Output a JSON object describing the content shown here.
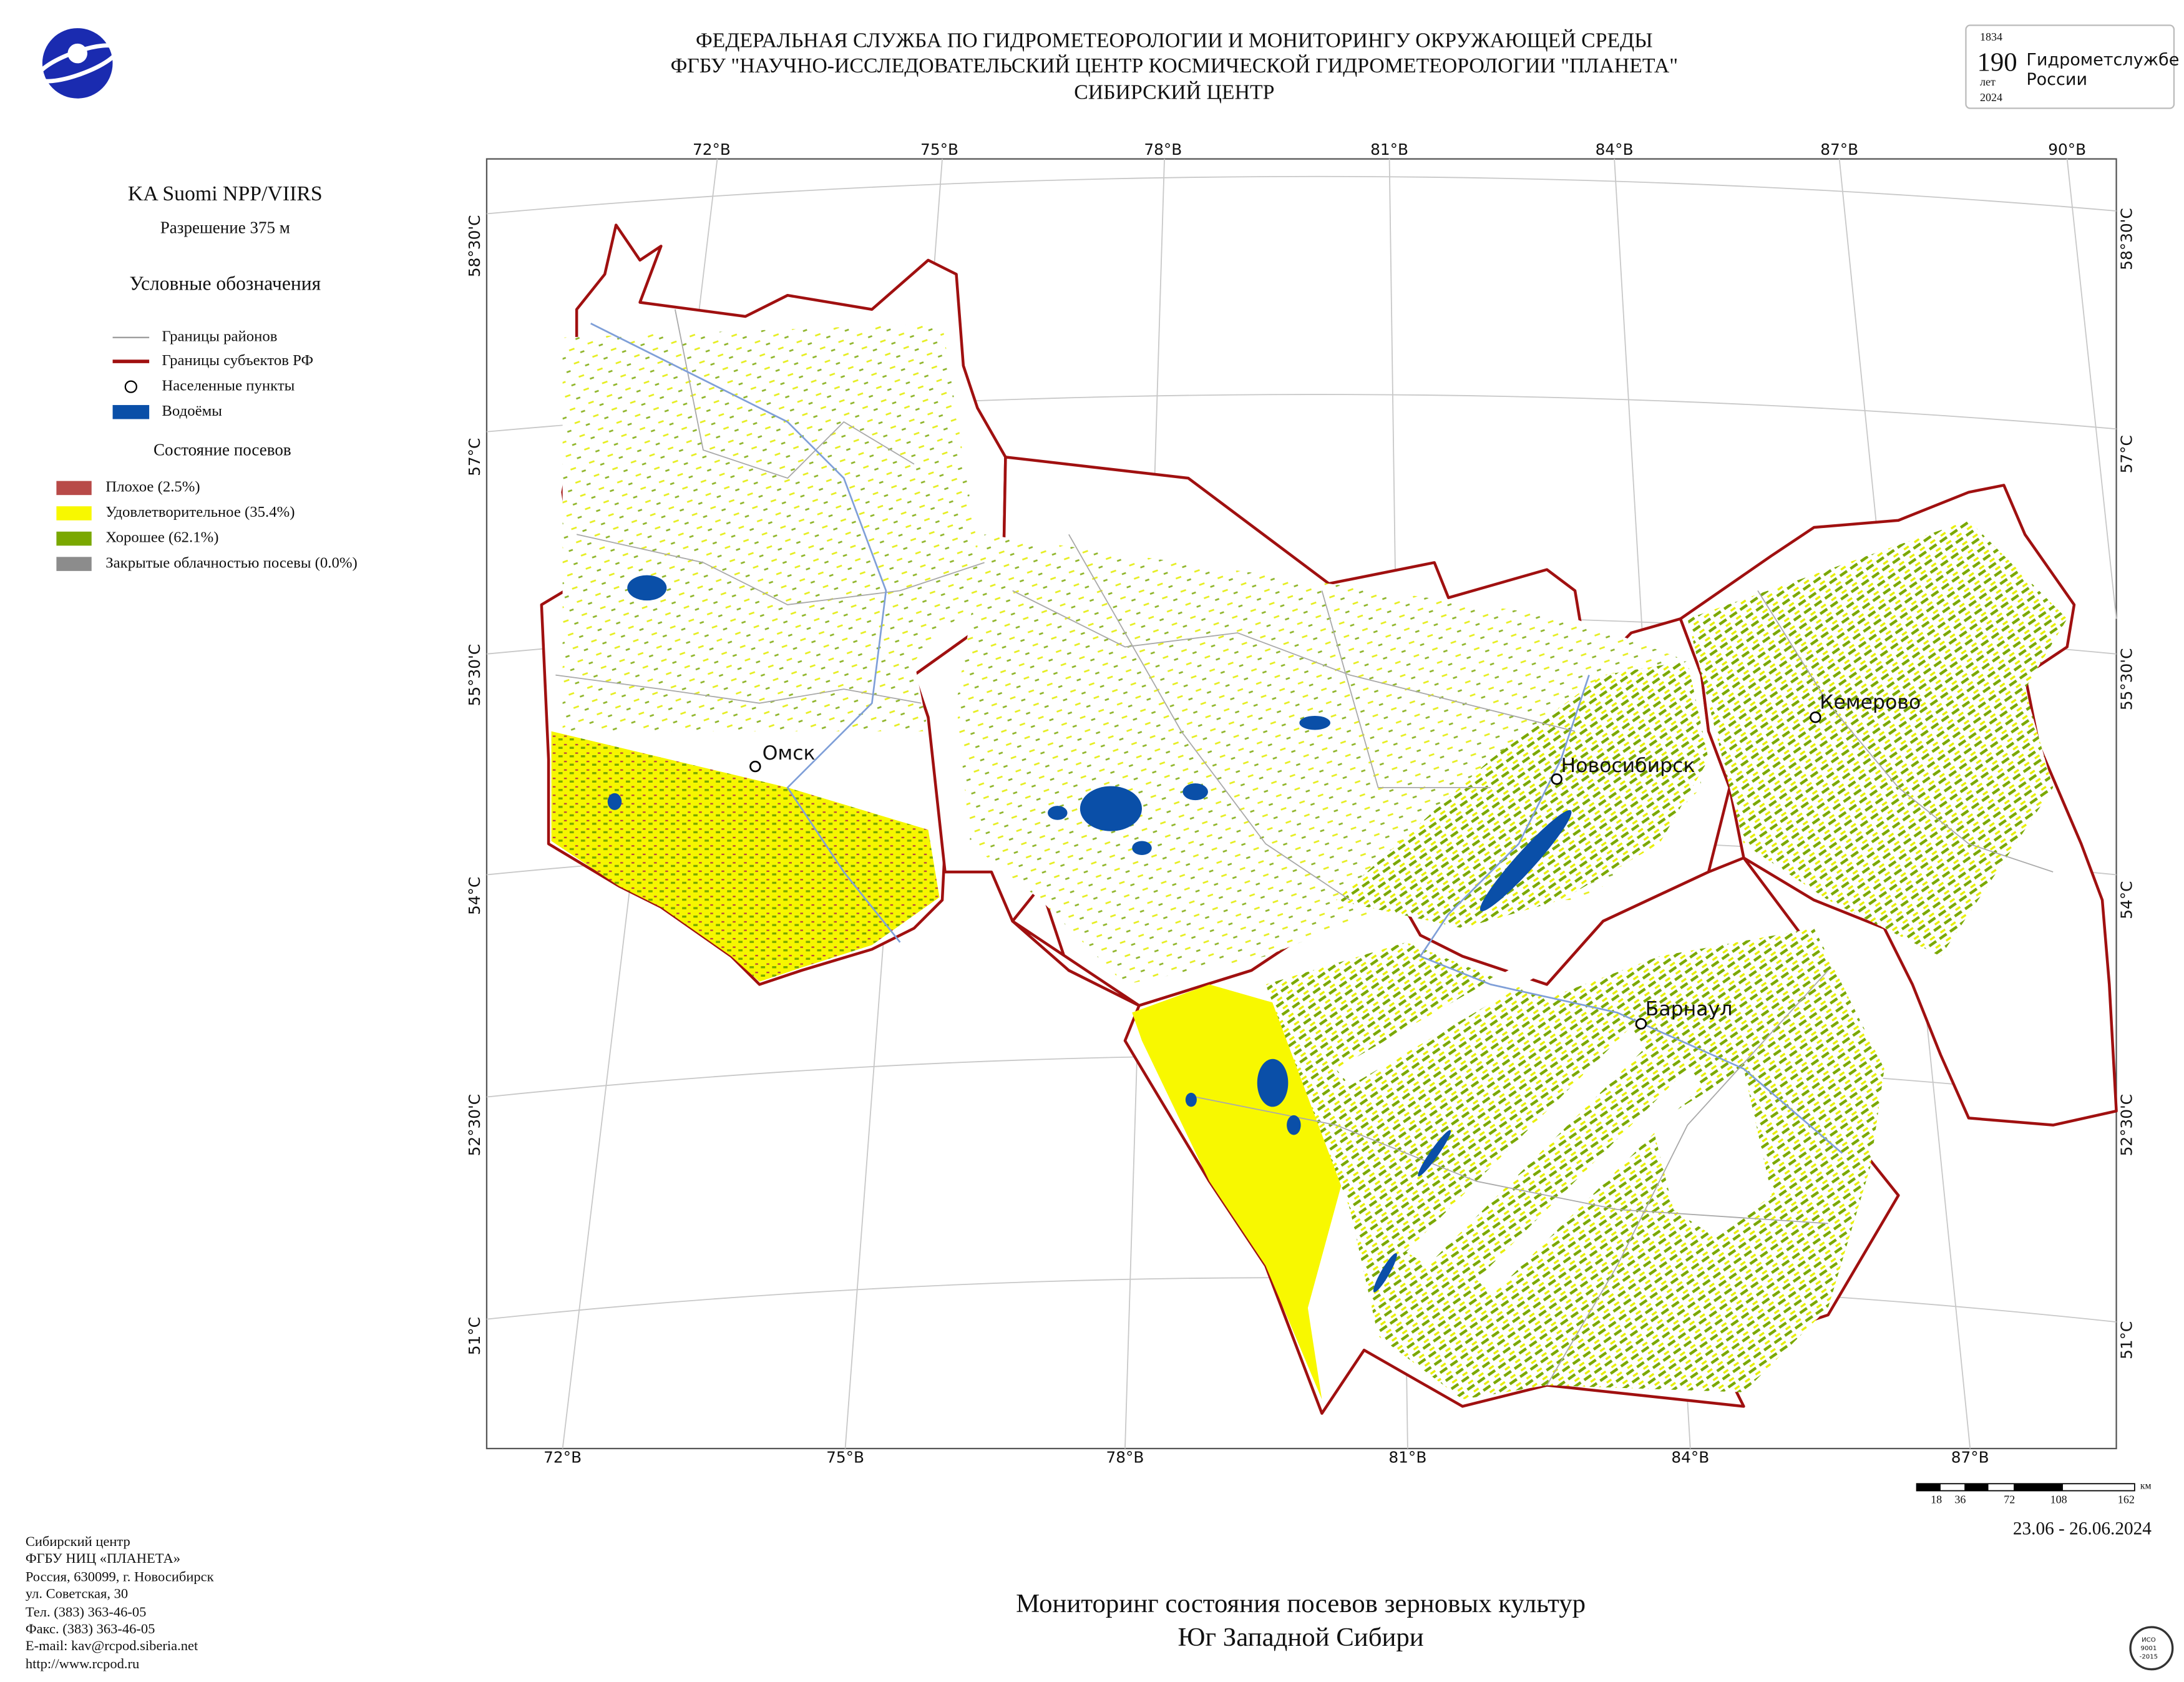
{
  "header": {
    "lines": [
      "ФЕДЕРАЛЬНАЯ СЛУЖБА ПО ГИДРОМЕТЕОРОЛОГИИ И МОНИТОРИНГУ ОКРУЖАЮЩЕЙ СРЕДЫ",
      "ФГБУ \"НАУЧНО-ИССЛЕДОВАТЕЛЬСКИЙ ЦЕНТР КОСМИЧЕСКОЙ ГИДРОМЕТЕОРОЛОГИИ \"ПЛАНЕТА\"",
      "СИБИРСКИЙ ЦЕНТР"
    ]
  },
  "anniversary_logo": {
    "start": "1834",
    "number": "190",
    "unit": "лет",
    "end": "2024",
    "line1": "Гидрометслужбе",
    "line2": "России"
  },
  "sidebar": {
    "satellite": "KA Suomi NPP/VIIRS",
    "resolution": "Разрешение 375 м",
    "legend_title": "Условные обозначения",
    "legend": [
      "Границы районов",
      "Границы субъектов РФ",
      "Населенные пункты",
      "Водоёмы"
    ],
    "crops_title": "Состояние посевов",
    "crops": [
      "Плохое (2.5%)",
      "Удовлетворительное (35.4%)",
      "Хорошее (62.1%)",
      "Закрытые облачностью посевы (0.0%)"
    ]
  },
  "map": {
    "top_lon_labels": [
      "72°В",
      "75°В",
      "78°В",
      "81°В",
      "84°В",
      "87°В",
      "90°В"
    ],
    "bottom_lon_labels": [
      "72°В",
      "75°В",
      "78°В",
      "81°В",
      "84°В",
      "87°В"
    ],
    "left_lat_labels": [
      "58°30'С",
      "57°С",
      "55°30'С",
      "54°С",
      "52°30'С",
      "51°С"
    ],
    "right_lat_labels": [
      "58°30'С",
      "57°С",
      "55°30'С",
      "54°С",
      "52°30'С",
      "51°С"
    ],
    "cities": [
      "Омск",
      "Новосибирск",
      "Кемерово",
      "Барнаул"
    ]
  },
  "scale_bar": {
    "labels": [
      "18",
      "36",
      "72",
      "108",
      "162"
    ],
    "unit": "км"
  },
  "date": "23.06 - 26.06.2024",
  "title": [
    "Мониторинг состояния посевов зерновых культур",
    "Юг Западной Сибири"
  ],
  "footer": [
    "Сибирский центр",
    "ФГБУ НИЦ «ПЛАНЕТА»",
    "Россия, 630099, г. Новосибирск",
    "ул. Советская, 30",
    "Тел. (383) 363-46-05",
    "Факс. (383) 363-46-05",
    "E-mail: kav@rcpod.siberia.net",
    "http://www.rcpod.ru"
  ],
  "iso_logo": [
    "ИСО",
    "9001",
    "-2015"
  ]
}
